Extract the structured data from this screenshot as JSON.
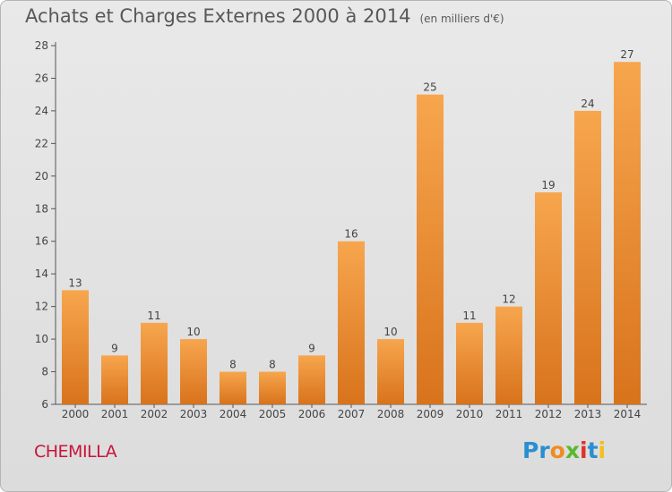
{
  "header": {
    "title": "Achats et Charges Externes 2000 à 2014",
    "unit": "(en milliers d'€)"
  },
  "footer": {
    "commune": "CHEMILLA",
    "logo_letters": [
      {
        "ch": "P",
        "color": "#2a8fd0"
      },
      {
        "ch": "r",
        "color": "#2a8fd0"
      },
      {
        "ch": "o",
        "color": "#f08c1e"
      },
      {
        "ch": "x",
        "color": "#5cb82e"
      },
      {
        "ch": "i",
        "color": "#e0312b"
      },
      {
        "ch": "t",
        "color": "#2a8fd0"
      },
      {
        "ch": "i",
        "color": "#f2c01e"
      }
    ]
  },
  "chart_data": {
    "type": "bar",
    "categories": [
      "2000",
      "2001",
      "2002",
      "2003",
      "2004",
      "2005",
      "2006",
      "2007",
      "2008",
      "2009",
      "2010",
      "2011",
      "2012",
      "2013",
      "2014"
    ],
    "values": [
      13,
      9,
      11,
      10,
      8,
      8,
      9,
      16,
      10,
      25,
      11,
      12,
      19,
      24,
      27
    ],
    "ylim": [
      6,
      28
    ],
    "yticks": [
      6,
      8,
      10,
      12,
      14,
      16,
      18,
      20,
      22,
      24,
      26,
      28
    ],
    "grid": false,
    "bar_color_top": "#f7a64e",
    "bar_color_bottom": "#d8731c"
  }
}
